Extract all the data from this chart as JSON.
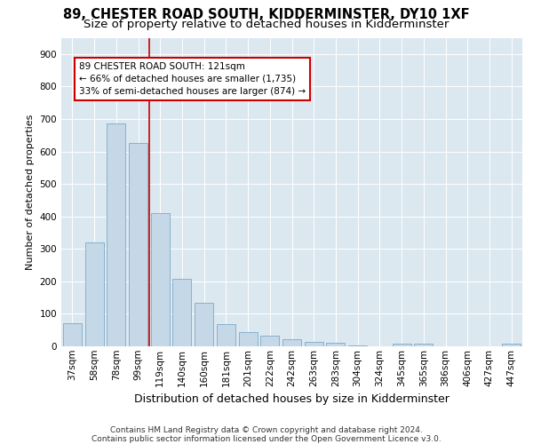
{
  "title": "89, CHESTER ROAD SOUTH, KIDDERMINSTER, DY10 1XF",
  "subtitle": "Size of property relative to detached houses in Kidderminster",
  "xlabel": "Distribution of detached houses by size in Kidderminster",
  "ylabel": "Number of detached properties",
  "categories": [
    "37sqm",
    "58sqm",
    "78sqm",
    "99sqm",
    "119sqm",
    "140sqm",
    "160sqm",
    "181sqm",
    "201sqm",
    "222sqm",
    "242sqm",
    "263sqm",
    "283sqm",
    "304sqm",
    "324sqm",
    "345sqm",
    "365sqm",
    "386sqm",
    "406sqm",
    "427sqm",
    "447sqm"
  ],
  "values": [
    70,
    320,
    685,
    625,
    410,
    207,
    135,
    68,
    45,
    32,
    22,
    13,
    10,
    2,
    0,
    8,
    8,
    0,
    0,
    0,
    8
  ],
  "bar_color": "#c5d8e8",
  "bar_edge_color": "#7aaac8",
  "annotation_text": "89 CHESTER ROAD SOUTH: 121sqm\n← 66% of detached houses are smaller (1,735)\n33% of semi-detached houses are larger (874) →",
  "annotation_box_color": "#ffffff",
  "annotation_box_edge_color": "#cc0000",
  "vline_color": "#cc0000",
  "vline_x": 3.5,
  "ylim": [
    0,
    950
  ],
  "yticks": [
    0,
    100,
    200,
    300,
    400,
    500,
    600,
    700,
    800,
    900
  ],
  "background_color": "#dce8f0",
  "footer_text": "Contains HM Land Registry data © Crown copyright and database right 2024.\nContains public sector information licensed under the Open Government Licence v3.0.",
  "title_fontsize": 10.5,
  "subtitle_fontsize": 9.5,
  "xlabel_fontsize": 9,
  "ylabel_fontsize": 8,
  "tick_fontsize": 7.5,
  "annotation_fontsize": 7.5,
  "footer_fontsize": 6.5
}
